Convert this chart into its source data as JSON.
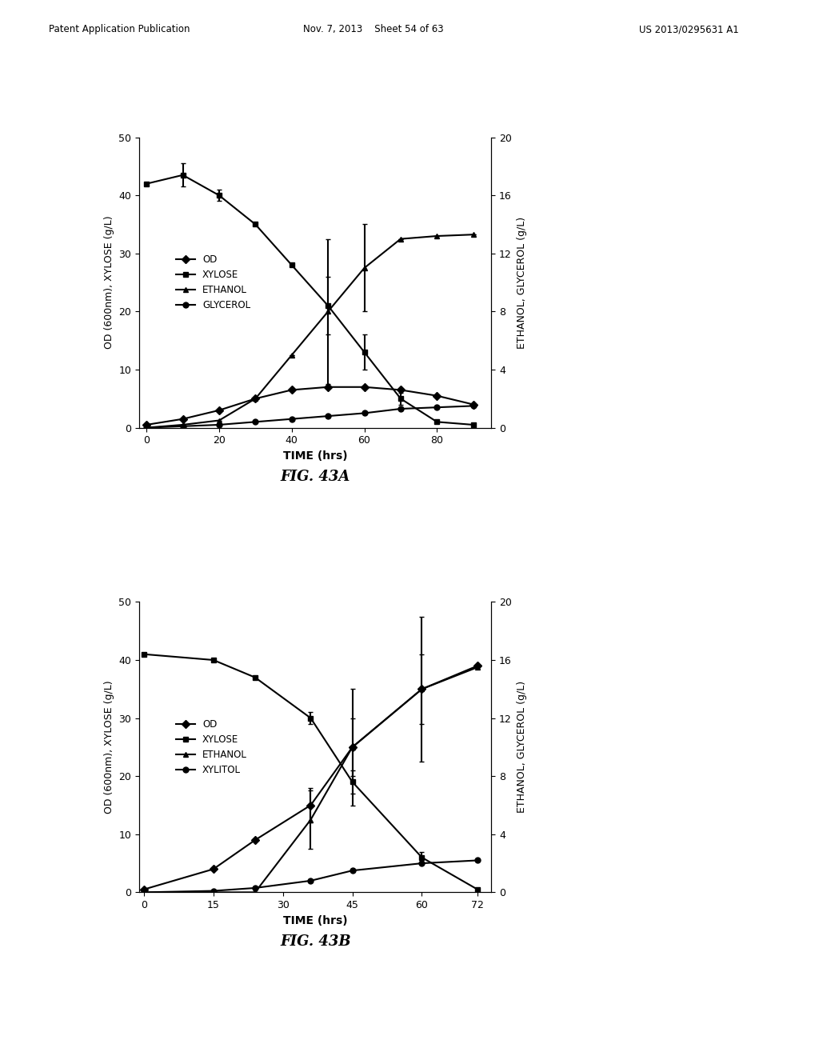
{
  "fig43a": {
    "title": "FIG. 43A",
    "xlabel": "TIME (hrs)",
    "ylabel_left": "OD (600nm), XYLOSE (g/L)",
    "ylabel_right": "ETHANOL, GLYCEROL (g/L)",
    "ylim_left": [
      0,
      50
    ],
    "ylim_right": [
      0,
      20
    ],
    "yticks_left": [
      0,
      10,
      20,
      30,
      40,
      50
    ],
    "yticks_right": [
      0,
      4,
      8,
      12,
      16,
      20
    ],
    "xlim": [
      -2,
      95
    ],
    "xticks": [
      0,
      20,
      40,
      60,
      80
    ],
    "legend": [
      "OD",
      "XYLOSE",
      "ETHANOL",
      "GLYCEROL"
    ],
    "OD": {
      "x": [
        0,
        10,
        20,
        30,
        40,
        50,
        60,
        70,
        80,
        90
      ],
      "y": [
        0.5,
        1.5,
        3,
        5,
        6.5,
        7,
        7,
        6.5,
        5.5,
        4
      ],
      "yerr": [
        0,
        0,
        0,
        0,
        0,
        0,
        0,
        0,
        0,
        0
      ]
    },
    "XYLOSE": {
      "x": [
        0,
        10,
        20,
        30,
        40,
        50,
        60,
        70,
        80,
        90
      ],
      "y": [
        42,
        43.5,
        40,
        35,
        28,
        21,
        13,
        5,
        1,
        0.5
      ],
      "yerr": [
        0,
        2,
        1,
        0,
        0,
        5,
        3,
        1,
        0,
        0
      ]
    },
    "ETHANOL": {
      "x": [
        0,
        10,
        20,
        30,
        40,
        50,
        60,
        70,
        80,
        90
      ],
      "y": [
        0,
        0.2,
        0.5,
        2,
        5,
        8,
        11,
        13,
        13.2,
        13.3
      ],
      "yerr": [
        0,
        0,
        0,
        0,
        0,
        5,
        3,
        0,
        0,
        0
      ]
    },
    "GLYCEROL": {
      "x": [
        0,
        10,
        20,
        30,
        40,
        50,
        60,
        70,
        80,
        90
      ],
      "y": [
        0,
        0.1,
        0.2,
        0.4,
        0.6,
        0.8,
        1.0,
        1.3,
        1.4,
        1.5
      ],
      "yerr": [
        0,
        0,
        0,
        0,
        0,
        0,
        0,
        0,
        0,
        0
      ]
    }
  },
  "fig43b": {
    "title": "FIG. 43B",
    "xlabel": "TIME (hrs)",
    "ylabel_left": "OD (600nm), XYLOSE (g/L)",
    "ylabel_right": "ETHANOL, GLYCEROL (g/L)",
    "ylim_left": [
      0,
      50
    ],
    "ylim_right": [
      0,
      20
    ],
    "yticks_left": [
      0,
      10,
      20,
      30,
      40,
      50
    ],
    "yticks_right": [
      0,
      4,
      8,
      12,
      16,
      20
    ],
    "xlim": [
      -1,
      75
    ],
    "xticks": [
      0,
      15,
      30,
      45,
      60,
      72
    ],
    "legend": [
      "OD",
      "XYLOSE",
      "ETHANOL",
      "XYLITOL"
    ],
    "OD": {
      "x": [
        0,
        15,
        24,
        36,
        45,
        60,
        72
      ],
      "y": [
        0.5,
        4,
        9,
        15,
        25,
        35,
        39
      ],
      "yerr": [
        0,
        0,
        0,
        3,
        5,
        6,
        0
      ]
    },
    "XYLOSE": {
      "x": [
        0,
        15,
        24,
        36,
        45,
        60,
        72
      ],
      "y": [
        41,
        40,
        37,
        30,
        19,
        6,
        0.5
      ],
      "yerr": [
        0,
        0,
        0,
        1,
        2,
        1,
        0
      ]
    },
    "ETHANOL": {
      "x": [
        0,
        15,
        24,
        36,
        45,
        60,
        72
      ],
      "y": [
        0,
        0,
        0,
        5,
        10,
        14,
        15.5
      ],
      "yerr": [
        0,
        0,
        0,
        2,
        4,
        5,
        0
      ]
    },
    "XYLITOL": {
      "x": [
        0,
        15,
        24,
        36,
        45,
        60,
        72
      ],
      "y": [
        0,
        0.1,
        0.3,
        0.8,
        1.5,
        2.0,
        2.2
      ],
      "yerr": [
        0,
        0,
        0,
        0,
        0,
        0,
        0
      ]
    }
  },
  "header": {
    "left": "Patent Application Publication",
    "center": "Nov. 7, 2013    Sheet 54 of 63",
    "right": "US 2013/0295631 A1"
  },
  "line_color": "#000000",
  "markersize": 5,
  "linewidth": 1.5
}
